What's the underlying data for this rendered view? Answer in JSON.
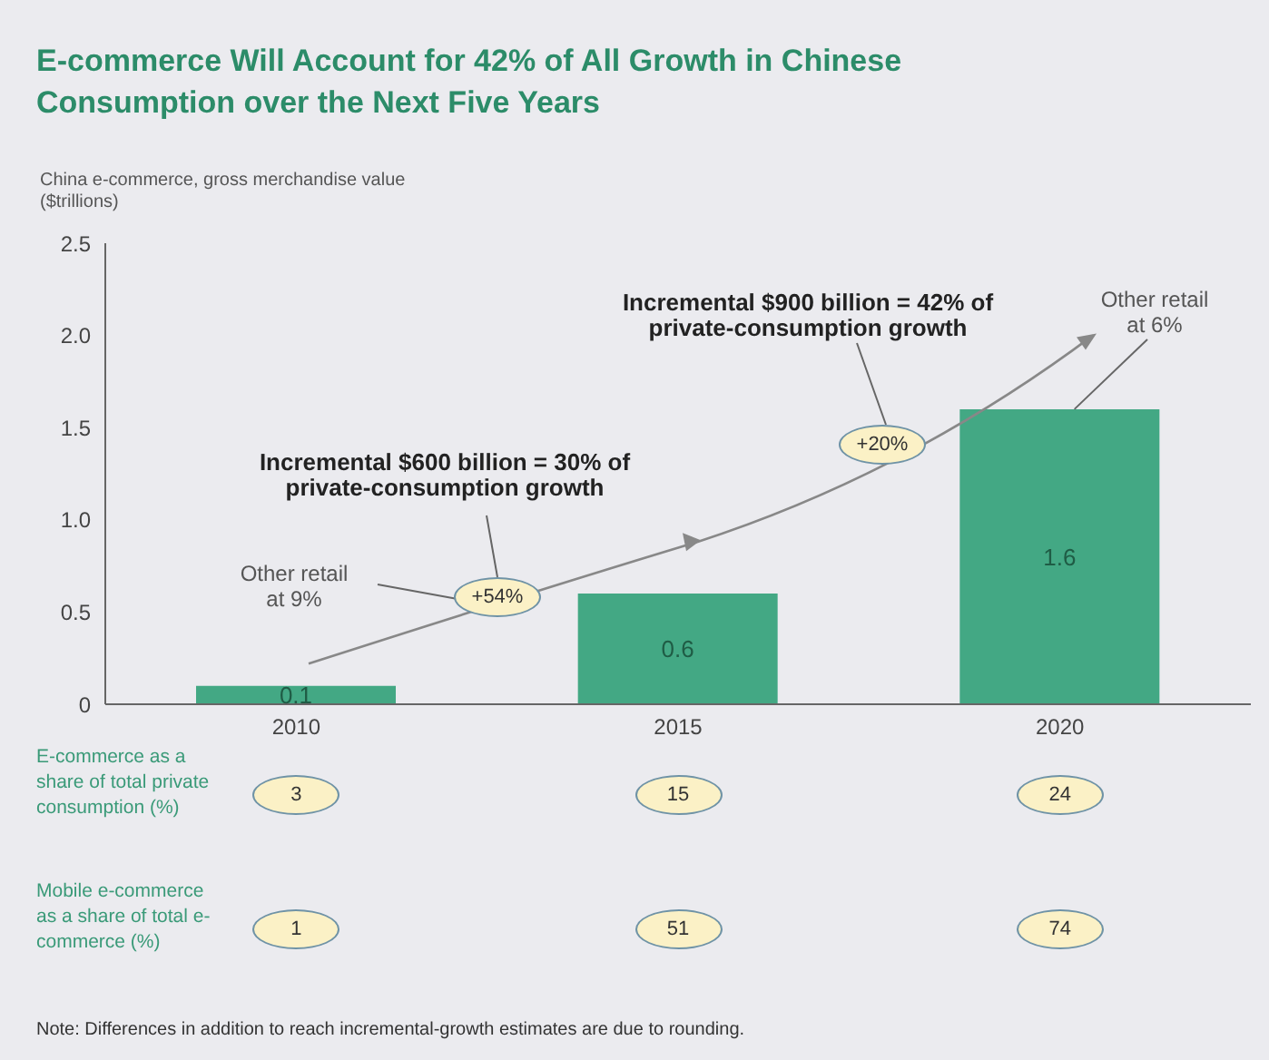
{
  "chart_data": {
    "type": "bar",
    "title": "E-commerce Will Account for 42% of All Growth in Chinese Consumption over the Next Five Years",
    "ylabel": "China e-commerce, gross merchandise value ($trillions)",
    "categories": [
      "2010",
      "2015",
      "2020"
    ],
    "values": [
      0.1,
      0.6,
      1.6
    ],
    "color": "#43a884",
    "ylim": [
      0,
      2.5
    ],
    "yticks": [
      0,
      0.5,
      {
        "value": 1,
        "label": "1.0"
      },
      1.5,
      {
        "value": 2,
        "label": "2.0"
      },
      2.5
    ],
    "grid": false,
    "data_labels": true,
    "annotations": [
      "Incremental $600 billion = 30% of private-consumption growth",
      "+54%",
      "Other retail at 9%",
      "Incremental $900 billion = 42% of private-consumption growth",
      "+20%",
      {
        "text": "Other retail at 6%",
        "x": "2020",
        "y": 1.6
      },
      "E-commerce as a share of total private consumption (%)",
      "3",
      "15",
      "24",
      "Mobile e-commerce as a share of total e-commerce (%)",
      "1",
      "51",
      "74",
      "Note: Differences in addition to reach incremental-growth estimates are due to rounding."
    ]
  }
}
